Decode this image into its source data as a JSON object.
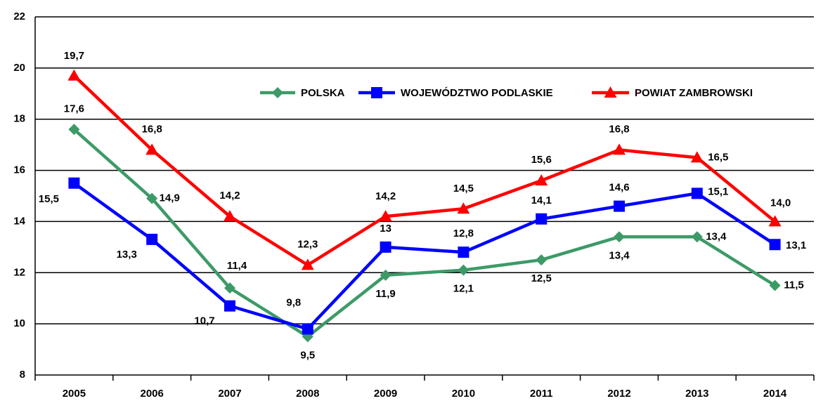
{
  "chart_data": {
    "type": "line",
    "categories": [
      "2005",
      "2006",
      "2007",
      "2008",
      "2009",
      "2010",
      "2011",
      "2012",
      "2013",
      "2014"
    ],
    "series": [
      {
        "name": "POLSKA",
        "color": "#3d9a67",
        "marker": "diamond",
        "values": [
          17.6,
          14.9,
          11.4,
          9.5,
          11.9,
          12.1,
          12.5,
          13.4,
          13.4,
          11.5
        ],
        "value_labels": [
          "17,6",
          "14,9",
          "11,4",
          "9,5",
          "11,9",
          "12,1",
          "12,5",
          "13,4",
          "13,4",
          "11,5"
        ]
      },
      {
        "name": "WOJEWÓDZTWO PODLASKIE",
        "color": "#0000ff",
        "marker": "square",
        "values": [
          15.5,
          13.3,
          10.7,
          9.8,
          13,
          12.8,
          14.1,
          14.6,
          15.1,
          13.1
        ],
        "value_labels": [
          "15,5",
          "13,3",
          "10,7",
          "9,8",
          "13",
          "12,8",
          "14,1",
          "14,6",
          "15,1",
          "13,1"
        ]
      },
      {
        "name": "POWIAT ZAMBROWSKI",
        "color": "#ff0000",
        "marker": "triangle",
        "values": [
          19.7,
          16.8,
          14.2,
          12.3,
          14.2,
          14.5,
          15.6,
          16.8,
          16.5,
          14.0
        ],
        "value_labels": [
          "19,7",
          "16,8",
          "14,2",
          "12,3",
          "14,2",
          "14,5",
          "15,6",
          "16,8",
          "16,5",
          "14,0"
        ]
      }
    ],
    "ylim": [
      8,
      22
    ],
    "yticks": [
      8,
      10,
      12,
      14,
      16,
      18,
      20,
      22
    ],
    "grid": true,
    "legend": "top"
  }
}
